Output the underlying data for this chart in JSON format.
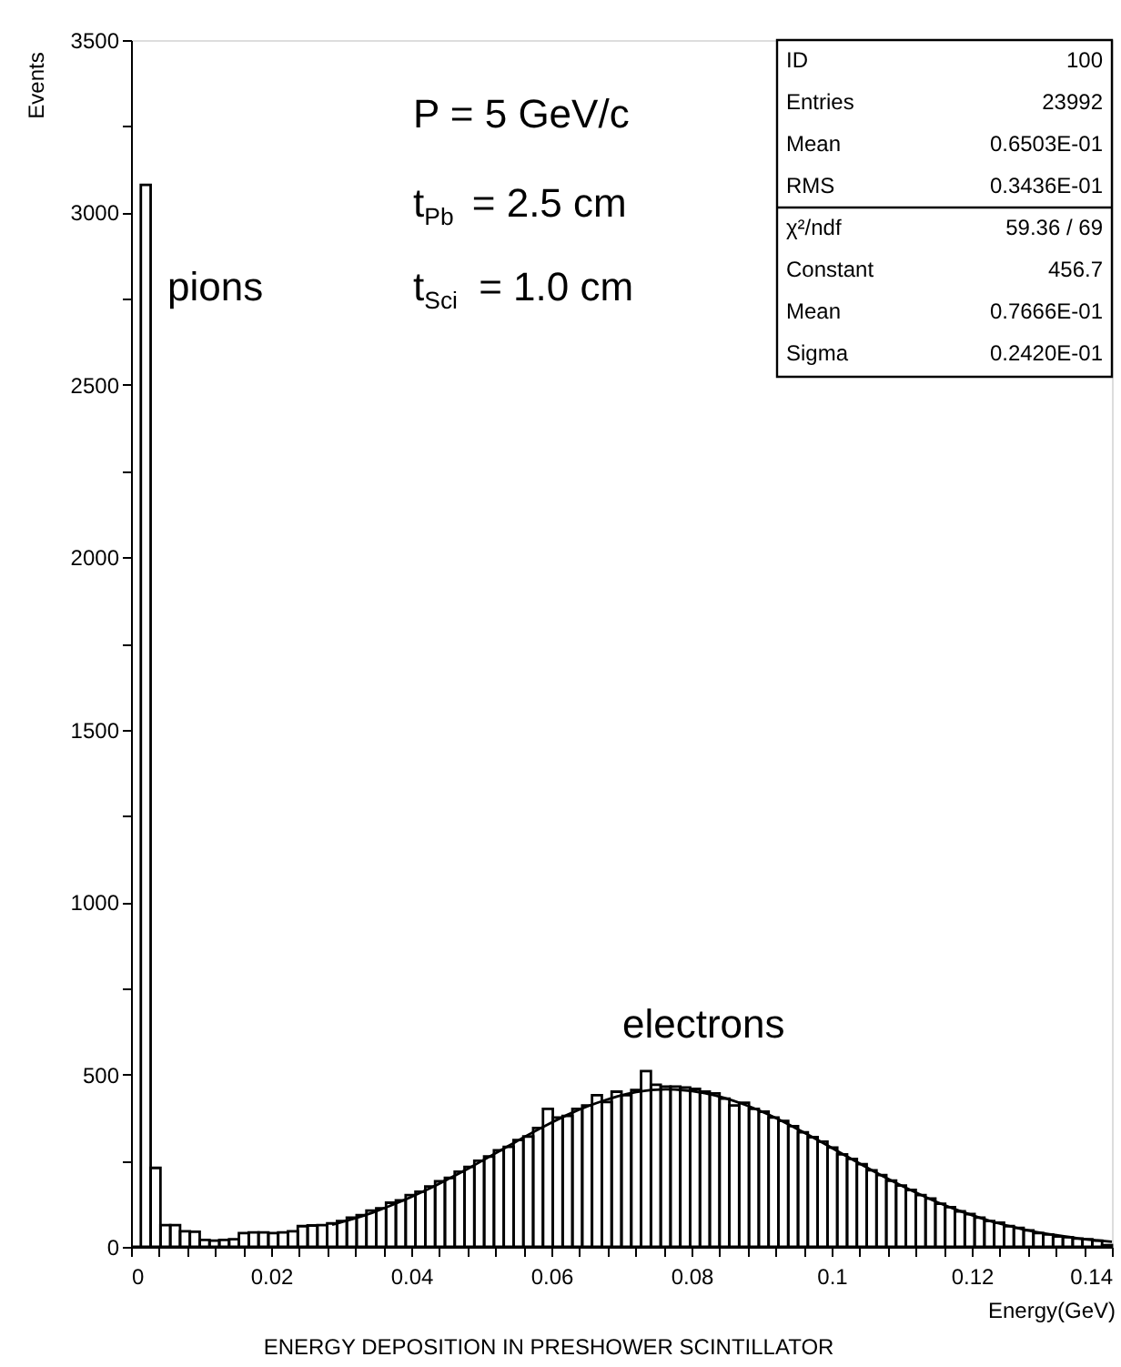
{
  "chart_data": {
    "type": "histogram",
    "xlabel": "Energy(GeV)",
    "ylabel": "Events",
    "annotations": [
      "P = 5 GeV/c",
      "t$_{Pb}$ = 2.5 cm",
      "t$_{Sci}$ = 1.0 cm",
      "pions",
      "electrons",
      "ENERGY DEPOSITION IN PRESHOWER SCINTILLATOR",
      "ID",
      "100",
      "Entries",
      "23992",
      "Mean",
      "0.6503E-01",
      "RMS",
      "0.3436E-01",
      "χ²/ndf",
      "59.36  /  69",
      "Constant",
      "456.7",
      "Mean",
      "0.7666E-01",
      "Sigma",
      "0.2420E-01"
    ],
    "bins": [
      0,
      0.0014,
      0.0028,
      0.0042,
      0.0056,
      0.007,
      0.0084,
      0.0098,
      0.0112,
      0.0126,
      0.014,
      0.0154,
      0.0168,
      0.0182,
      0.0196,
      0.021,
      0.0224,
      0.0238,
      0.0252,
      0.0266,
      0.028,
      0.0294,
      0.0308,
      0.0322,
      0.0336,
      0.035,
      0.0364,
      0.0378,
      0.0392,
      0.0406,
      0.042,
      0.0434,
      0.0448,
      0.0462,
      0.0476,
      0.049,
      0.0504,
      0.0518,
      0.0532,
      0.0546,
      0.056,
      0.0574,
      0.0588,
      0.0602,
      0.0616,
      0.063,
      0.0644,
      0.0658,
      0.0672,
      0.0686,
      0.07,
      0.0714,
      0.0728,
      0.0742,
      0.0756,
      0.077,
      0.0784,
      0.0798,
      0.0812,
      0.0826,
      0.084,
      0.0854,
      0.0868,
      0.0882,
      0.0896,
      0.091,
      0.0924,
      0.0938,
      0.0952,
      0.0966,
      0.098,
      0.0994,
      0.1008,
      0.1022,
      0.1036,
      0.105,
      0.1064,
      0.1078,
      0.1092,
      0.1106,
      0.112,
      0.1134,
      0.1148,
      0.1162,
      0.1176,
      0.119,
      0.1204,
      0.1218,
      0.1232,
      0.1246,
      0.126,
      0.1274,
      0.1288,
      0.1302,
      0.1316,
      0.133,
      0.1344,
      0.1358,
      0.1372,
      0.1386,
      0.14
    ],
    "values": [
      0,
      3080,
      229,
      63,
      63,
      45,
      44,
      20,
      18,
      20,
      22,
      40,
      42,
      42,
      40,
      42,
      45,
      60,
      62,
      63,
      68,
      75,
      85,
      92,
      105,
      112,
      128,
      135,
      150,
      160,
      175,
      190,
      200,
      218,
      232,
      250,
      262,
      280,
      290,
      310,
      320,
      345,
      400,
      375,
      380,
      400,
      410,
      440,
      420,
      450,
      440,
      455,
      510,
      470,
      465,
      465,
      462,
      458,
      450,
      445,
      430,
      410,
      418,
      400,
      392,
      375,
      365,
      350,
      332,
      318,
      305,
      288,
      268,
      255,
      240,
      222,
      208,
      192,
      178,
      165,
      150,
      140,
      125,
      115,
      103,
      95,
      85,
      75,
      70,
      60,
      55,
      48,
      40,
      36,
      30,
      28,
      24,
      22,
      18,
      5
    ],
    "color": "#000000",
    "series": [
      {
        "type": "line",
        "color": "#000000",
        "x": [
          0.0287,
          0.0315,
          0.0343,
          0.0371,
          0.0399,
          0.0427,
          0.0455,
          0.0483,
          0.0511,
          0.0539,
          0.0567,
          0.0595,
          0.0623,
          0.0651,
          0.0679,
          0.0707,
          0.0735,
          0.0763,
          0.0791,
          0.0819,
          0.0847,
          0.0875,
          0.0903,
          0.0931,
          0.0959,
          0.0987,
          0.1015,
          0.1043,
          0.1071,
          0.1099,
          0.1127,
          0.1155,
          0.1183,
          0.1211,
          0.1239,
          0.1267,
          0.1295,
          0.1323,
          0.1351,
          0.1379,
          0.14
        ],
        "values": [
          64,
          80,
          98,
          120,
          144,
          170,
          199,
          229,
          261,
          293,
          325,
          355,
          383,
          407,
          427,
          443,
          453,
          457,
          454,
          446,
          432,
          413,
          390,
          363,
          333,
          302,
          270,
          238,
          207,
          178,
          151,
          126,
          104,
          85,
          68,
          54,
          42,
          33,
          25,
          19,
          15
        ]
      }
    ],
    "xlim": [
      0,
      0.14
    ],
    "xticks": [
      0,
      {
        "value": 0.004,
        "label": null
      },
      {
        "value": 0.008,
        "label": null
      },
      {
        "value": 0.012,
        "label": null
      },
      {
        "value": 0.016,
        "label": null
      },
      0.02,
      {
        "value": 0.024,
        "label": null
      },
      {
        "value": 0.028,
        "label": null
      },
      {
        "value": 0.032,
        "label": null
      },
      {
        "value": 0.036,
        "label": null
      },
      0.04,
      {
        "value": 0.044,
        "label": null
      },
      {
        "value": 0.048,
        "label": null
      },
      {
        "value": 0.052,
        "label": null
      },
      {
        "value": 0.056,
        "label": null
      },
      0.06,
      {
        "value": 0.064,
        "label": null
      },
      {
        "value": 0.068,
        "label": null
      },
      {
        "value": 0.072,
        "label": null
      },
      {
        "value": 0.076,
        "label": null
      },
      0.08,
      {
        "value": 0.084,
        "label": null
      },
      {
        "value": 0.088,
        "label": null
      },
      {
        "value": 0.092,
        "label": null
      },
      {
        "value": 0.096,
        "label": null
      },
      0.1,
      {
        "value": 0.104,
        "label": null
      },
      {
        "value": 0.108,
        "label": null
      },
      {
        "value": 0.112,
        "label": null
      },
      {
        "value": 0.116,
        "label": null
      },
      0.12,
      {
        "value": 0.124,
        "label": null
      },
      {
        "value": 0.128,
        "label": null
      },
      {
        "value": 0.132,
        "label": null
      },
      {
        "value": 0.136,
        "label": null
      },
      0.14
    ],
    "ylim": [
      0,
      3500
    ],
    "yticks": [
      0,
      {
        "value": 250,
        "label": null
      },
      500,
      {
        "value": 750,
        "label": null
      },
      1000,
      {
        "value": 1250,
        "label": null
      },
      1500,
      {
        "value": 1750,
        "label": null
      },
      2000,
      {
        "value": 2250,
        "label": null
      },
      2500,
      {
        "value": 2750,
        "label": null
      },
      3000,
      {
        "value": 3250,
        "label": null
      },
      3500
    ]
  }
}
